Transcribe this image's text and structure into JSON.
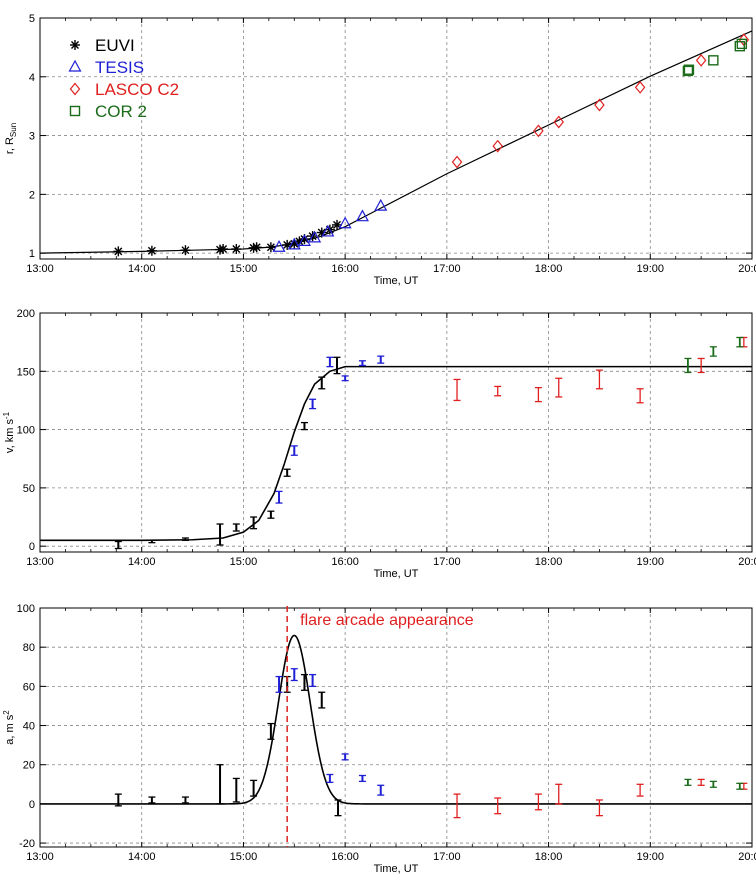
{
  "colors": {
    "euvi": "#000000",
    "tesis": "#1f1fd6",
    "lasco": "#e02020",
    "cor2": "#1a6b1a",
    "fit": "#000000",
    "flare": "#e02020"
  },
  "legend": [
    {
      "label": "EUVI",
      "color": "#000000",
      "marker": "asterisk"
    },
    {
      "label": "TESIS",
      "color": "#1f1fd6",
      "marker": "triangle"
    },
    {
      "label": "LASCO C2",
      "color": "#e02020",
      "marker": "diamond"
    },
    {
      "label": "COR 2",
      "color": "#1a6b1a",
      "marker": "square"
    }
  ],
  "annotation": {
    "label": "flare arcade appearance",
    "time": 15.43
  },
  "chart_data": [
    {
      "type": "scatter",
      "title": "",
      "xlabel": "Time, UT",
      "ylabel_main": "r, R",
      "ylabel_sub": "Sun",
      "xlim": [
        13,
        20
      ],
      "ylim": [
        0.9,
        5
      ],
      "grid": true,
      "x_ticks": [
        "13:00",
        "14:00",
        "15:00",
        "16:00",
        "17:00",
        "18:00",
        "19:00",
        "20:00"
      ],
      "y_ticks": [
        "1",
        "2",
        "3",
        "4",
        "5"
      ],
      "series": [
        {
          "name": "EUVI",
          "marker": "asterisk",
          "x": [
            13.77,
            14.1,
            14.43,
            14.77,
            14.8,
            14.93,
            15.1,
            15.13,
            15.27,
            15.43,
            15.5,
            15.55,
            15.6,
            15.68,
            15.77,
            15.85,
            15.92
          ],
          "y": [
            1.03,
            1.04,
            1.05,
            1.06,
            1.07,
            1.07,
            1.09,
            1.1,
            1.1,
            1.14,
            1.16,
            1.2,
            1.24,
            1.29,
            1.35,
            1.4,
            1.48
          ]
        },
        {
          "name": "TESIS",
          "marker": "triangle",
          "x": [
            15.35,
            15.5,
            15.6,
            15.7,
            15.83,
            16.0,
            16.17,
            16.35
          ],
          "y": [
            1.1,
            1.14,
            1.2,
            1.26,
            1.36,
            1.5,
            1.62,
            1.8
          ]
        },
        {
          "name": "LASCO C2",
          "marker": "diamond",
          "x": [
            17.1,
            17.5,
            17.9,
            18.1,
            18.5,
            18.9,
            19.5,
            19.92
          ],
          "y": [
            2.55,
            2.82,
            3.08,
            3.23,
            3.52,
            3.82,
            4.28,
            4.63
          ]
        },
        {
          "name": "COR 2",
          "marker": "square",
          "x": [
            19.37,
            19.38,
            19.62,
            19.88,
            19.9
          ],
          "y": [
            4.1,
            4.12,
            4.28,
            4.52,
            4.56
          ]
        }
      ],
      "fit": {
        "x": [
          13,
          14,
          14.5,
          15,
          15.25,
          15.5,
          15.75,
          16,
          17,
          18,
          19,
          20
        ],
        "y": [
          1.0,
          1.03,
          1.05,
          1.07,
          1.1,
          1.16,
          1.28,
          1.45,
          2.35,
          3.18,
          4.01,
          4.78
        ]
      }
    },
    {
      "type": "scatter",
      "title": "",
      "xlabel": "Time, UT",
      "ylabel_main": "v, km s",
      "ylabel_sup": "-1",
      "xlim": [
        13,
        20
      ],
      "ylim": [
        -5,
        200
      ],
      "grid": true,
      "x_ticks": [
        "13:00",
        "14:00",
        "15:00",
        "16:00",
        "17:00",
        "18:00",
        "19:00",
        "20:00"
      ],
      "y_ticks": [
        "0",
        "50",
        "100",
        "150",
        "200"
      ],
      "series": [
        {
          "name": "EUVI",
          "x": [
            13.77,
            14.1,
            14.43,
            14.77,
            14.93,
            15.1,
            15.27,
            15.43,
            15.6,
            15.77,
            15.92
          ],
          "y": [
            1,
            4,
            6,
            10,
            16,
            20,
            27,
            63,
            103,
            140,
            155
          ],
          "err": [
            3,
            1,
            1,
            9,
            3,
            5,
            3,
            3,
            3,
            5,
            7
          ]
        },
        {
          "name": "TESIS",
          "x": [
            15.35,
            15.5,
            15.68,
            15.85,
            16.0,
            16.17,
            16.35
          ],
          "y": [
            42,
            82,
            122,
            158,
            144,
            157,
            160
          ],
          "err": [
            5,
            4,
            4,
            4,
            2,
            2,
            3
          ]
        },
        {
          "name": "LASCO C2",
          "x": [
            17.1,
            17.5,
            17.9,
            18.1,
            18.5,
            18.9,
            19.5,
            19.92
          ],
          "y": [
            134,
            133,
            130,
            136,
            143,
            129,
            155,
            175
          ]
        },
        {
          "name": "COR 2",
          "x": [
            19.37,
            19.62,
            19.88
          ],
          "y": [
            155,
            167,
            175
          ]
        }
      ],
      "err_lasco": [
        9,
        4,
        6,
        8,
        8,
        6,
        6,
        4
      ],
      "err_cor2": [
        6,
        4,
        4
      ],
      "fit": {
        "x": [
          13,
          14,
          14.5,
          14.8,
          15.0,
          15.15,
          15.3,
          15.4,
          15.5,
          15.6,
          15.7,
          15.85,
          16.0,
          16.5,
          20
        ],
        "y": [
          5,
          5,
          5.5,
          7,
          12,
          22,
          45,
          70,
          98,
          122,
          139,
          150,
          154,
          154,
          154
        ]
      }
    },
    {
      "type": "scatter",
      "title": "",
      "xlabel": "Time, UT",
      "ylabel_main": "a, m s",
      "ylabel_sup": "2",
      "xlim": [
        13,
        20
      ],
      "ylim": [
        -22,
        100
      ],
      "grid": true,
      "x_ticks": [
        "13:00",
        "14:00",
        "15:00",
        "16:00",
        "17:00",
        "18:00",
        "19:00",
        "20:00"
      ],
      "y_ticks": [
        "-20",
        "0",
        "20",
        "40",
        "60",
        "80",
        "100"
      ],
      "series": [
        {
          "name": "EUVI",
          "x": [
            13.77,
            14.1,
            14.43,
            14.77,
            14.93,
            15.1,
            15.27,
            15.43,
            15.6,
            15.77,
            15.93
          ],
          "y": [
            2,
            2,
            2,
            10,
            7,
            8,
            37,
            61,
            62,
            53,
            -2
          ]
        },
        {
          "name": "TESIS",
          "x": [
            15.35,
            15.5,
            15.68,
            15.85,
            16.0,
            16.17,
            16.35
          ],
          "y": [
            61,
            66,
            63,
            13,
            24,
            13,
            7
          ]
        },
        {
          "name": "LASCO C2",
          "x": [
            17.1,
            17.5,
            17.9,
            18.1,
            18.5,
            18.9,
            19.5,
            19.92
          ],
          "y": [
            -1,
            -1,
            1,
            5,
            -2,
            7,
            11,
            9
          ]
        },
        {
          "name": "COR 2",
          "x": [
            19.37,
            19.62,
            19.88
          ],
          "y": [
            11,
            10,
            9
          ]
        }
      ],
      "err_euvi": [
        3,
        1.5,
        1.5,
        10,
        6,
        4,
        4,
        4,
        4,
        4,
        4
      ],
      "err_tesis": [
        4,
        3,
        3,
        2,
        1.5,
        1.5,
        2.5
      ],
      "err_lasco": [
        6,
        4,
        4,
        5,
        4,
        3,
        1.5,
        1.5
      ],
      "err_cor2": [
        1.5,
        1.5,
        1.5
      ],
      "fit": {
        "peak": 86,
        "center": 15.5,
        "sigma": 0.155
      }
    }
  ]
}
